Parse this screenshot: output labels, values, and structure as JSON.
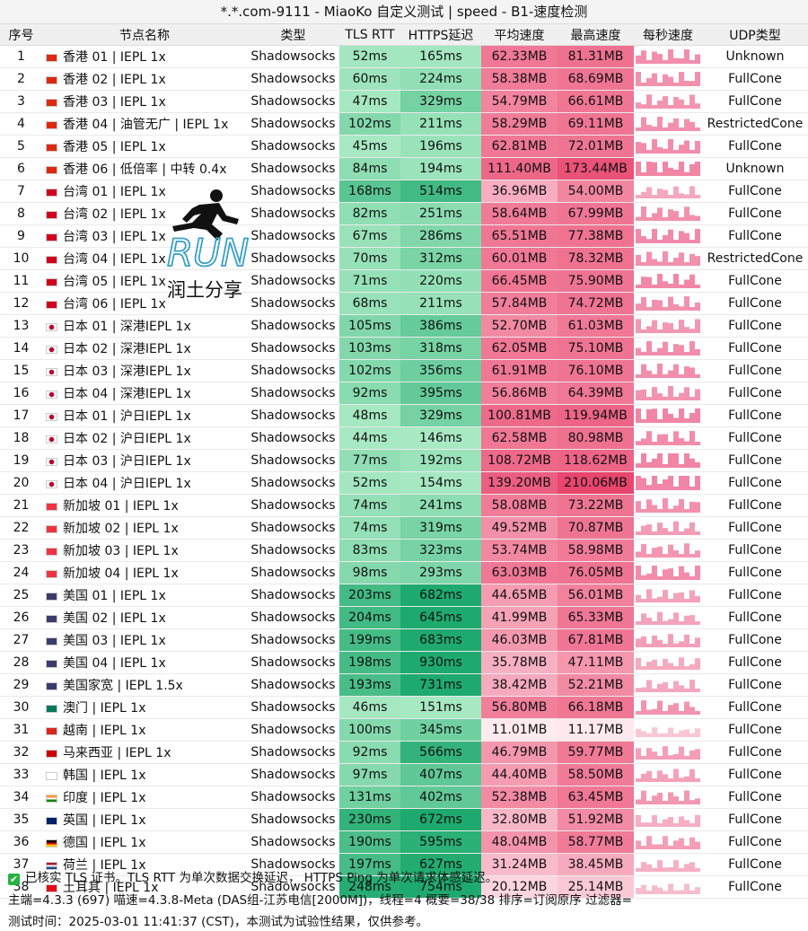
{
  "window": {
    "title": "*.*.com-9111 - MiaoKo 自定义测试 | speed - B1-速度检测"
  },
  "headers": [
    "序号",
    "节点名称",
    "类型",
    "TLS RTT",
    "HTTPS延迟",
    "平均速度",
    "最高速度",
    "每秒速度",
    "UDP类型"
  ],
  "colors": {
    "flag": {
      "hk": "#de2910",
      "tw": "#d0021b",
      "jp": "#ffffff",
      "sg": "#ef3340",
      "us": "#3c3b6e",
      "mo": "#00785e",
      "vn": "#da251d",
      "my": "#cc0001",
      "kr": "#ffffff",
      "in": "#ff9933",
      "gb": "#012169",
      "de": "#000000",
      "nl": "#ae1c28",
      "tr": "#e30a17"
    },
    "spark": "#f07ea0"
  },
  "rows": [
    {
      "idx": "1",
      "flag": "hk",
      "name": "香港 01 | IEPL 1x",
      "type": "Shadowsocks",
      "tls": "52ms",
      "https": "165ms",
      "avg": "62.33MB",
      "max": "81.31MB",
      "udp": "Unknown"
    },
    {
      "idx": "2",
      "flag": "hk",
      "name": "香港 02 | IEPL 1x",
      "type": "Shadowsocks",
      "tls": "60ms",
      "https": "224ms",
      "avg": "58.38MB",
      "max": "68.69MB",
      "udp": "FullCone"
    },
    {
      "idx": "3",
      "flag": "hk",
      "name": "香港 03 | IEPL 1x",
      "type": "Shadowsocks",
      "tls": "47ms",
      "https": "329ms",
      "avg": "54.79MB",
      "max": "66.61MB",
      "udp": "FullCone"
    },
    {
      "idx": "4",
      "flag": "hk",
      "name": "香港 04 | 油管无广 | IEPL 1x",
      "type": "Shadowsocks",
      "tls": "102ms",
      "https": "211ms",
      "avg": "58.29MB",
      "max": "69.11MB",
      "udp": "RestrictedCone"
    },
    {
      "idx": "5",
      "flag": "hk",
      "name": "香港 05 | IEPL 1x",
      "type": "Shadowsocks",
      "tls": "45ms",
      "https": "196ms",
      "avg": "62.81MB",
      "max": "72.01MB",
      "udp": "FullCone"
    },
    {
      "idx": "6",
      "flag": "hk",
      "name": "香港 06 | 低倍率 | 中转 0.4x",
      "type": "Shadowsocks",
      "tls": "84ms",
      "https": "194ms",
      "avg": "111.40MB",
      "max": "173.44MB",
      "udp": "Unknown"
    },
    {
      "idx": "7",
      "flag": "tw",
      "name": "台湾 01 | IEPL 1x",
      "type": "Shadowsocks",
      "tls": "168ms",
      "https": "514ms",
      "avg": "36.96MB",
      "max": "54.00MB",
      "udp": "FullCone"
    },
    {
      "idx": "8",
      "flag": "tw",
      "name": "台湾 02 | IEPL 1x",
      "type": "Shadowsocks",
      "tls": "82ms",
      "https": "251ms",
      "avg": "58.64MB",
      "max": "67.99MB",
      "udp": "FullCone"
    },
    {
      "idx": "9",
      "flag": "tw",
      "name": "台湾 03 | IEPL 1x",
      "type": "Shadowsocks",
      "tls": "67ms",
      "https": "286ms",
      "avg": "65.51MB",
      "max": "77.38MB",
      "udp": "FullCone"
    },
    {
      "idx": "10",
      "flag": "tw",
      "name": "台湾 04 | IEPL 1x",
      "type": "Shadowsocks",
      "tls": "70ms",
      "https": "312ms",
      "avg": "60.01MB",
      "max": "78.32MB",
      "udp": "RestrictedCone"
    },
    {
      "idx": "11",
      "flag": "tw",
      "name": "台湾 05 | IEPL 1x",
      "type": "Shadowsocks",
      "tls": "71ms",
      "https": "220ms",
      "avg": "66.45MB",
      "max": "75.90MB",
      "udp": "FullCone"
    },
    {
      "idx": "12",
      "flag": "tw",
      "name": "台湾 06 | IEPL 1x",
      "type": "Shadowsocks",
      "tls": "68ms",
      "https": "211ms",
      "avg": "57.84MB",
      "max": "74.72MB",
      "udp": "FullCone"
    },
    {
      "idx": "13",
      "flag": "jp",
      "name": "日本 01 | 深港IEPL 1x",
      "type": "Shadowsocks",
      "tls": "105ms",
      "https": "386ms",
      "avg": "52.70MB",
      "max": "61.03MB",
      "udp": "FullCone"
    },
    {
      "idx": "14",
      "flag": "jp",
      "name": "日本 02 | 深港IEPL 1x",
      "type": "Shadowsocks",
      "tls": "103ms",
      "https": "318ms",
      "avg": "62.05MB",
      "max": "75.10MB",
      "udp": "FullCone"
    },
    {
      "idx": "15",
      "flag": "jp",
      "name": "日本 03 | 深港IEPL 1x",
      "type": "Shadowsocks",
      "tls": "102ms",
      "https": "356ms",
      "avg": "61.91MB",
      "max": "76.10MB",
      "udp": "FullCone"
    },
    {
      "idx": "16",
      "flag": "jp",
      "name": "日本 04 | 深港IEPL 1x",
      "type": "Shadowsocks",
      "tls": "92ms",
      "https": "395ms",
      "avg": "56.86MB",
      "max": "64.39MB",
      "udp": "FullCone"
    },
    {
      "idx": "17",
      "flag": "jp",
      "name": "日本 01 | 沪日IEPL 1x",
      "type": "Shadowsocks",
      "tls": "48ms",
      "https": "329ms",
      "avg": "100.81MB",
      "max": "119.94MB",
      "udp": "FullCone"
    },
    {
      "idx": "18",
      "flag": "jp",
      "name": "日本 02 | 沪日IEPL 1x",
      "type": "Shadowsocks",
      "tls": "44ms",
      "https": "146ms",
      "avg": "62.58MB",
      "max": "80.98MB",
      "udp": "FullCone"
    },
    {
      "idx": "19",
      "flag": "jp",
      "name": "日本 03 | 沪日IEPL 1x",
      "type": "Shadowsocks",
      "tls": "77ms",
      "https": "192ms",
      "avg": "108.72MB",
      "max": "118.62MB",
      "udp": "FullCone"
    },
    {
      "idx": "20",
      "flag": "jp",
      "name": "日本 04 | 沪日IEPL 1x",
      "type": "Shadowsocks",
      "tls": "52ms",
      "https": "154ms",
      "avg": "139.20MB",
      "max": "210.06MB",
      "udp": "FullCone"
    },
    {
      "idx": "21",
      "flag": "sg",
      "name": "新加坡 01 | IEPL 1x",
      "type": "Shadowsocks",
      "tls": "74ms",
      "https": "241ms",
      "avg": "58.08MB",
      "max": "73.22MB",
      "udp": "FullCone"
    },
    {
      "idx": "22",
      "flag": "sg",
      "name": "新加坡 02 | IEPL 1x",
      "type": "Shadowsocks",
      "tls": "74ms",
      "https": "319ms",
      "avg": "49.52MB",
      "max": "70.87MB",
      "udp": "FullCone"
    },
    {
      "idx": "23",
      "flag": "sg",
      "name": "新加坡 03 | IEPL 1x",
      "type": "Shadowsocks",
      "tls": "83ms",
      "https": "323ms",
      "avg": "53.74MB",
      "max": "58.98MB",
      "udp": "FullCone"
    },
    {
      "idx": "24",
      "flag": "sg",
      "name": "新加坡 04 | IEPL 1x",
      "type": "Shadowsocks",
      "tls": "98ms",
      "https": "293ms",
      "avg": "63.03MB",
      "max": "76.05MB",
      "udp": "FullCone"
    },
    {
      "idx": "25",
      "flag": "us",
      "name": "美国 01 | IEPL 1x",
      "type": "Shadowsocks",
      "tls": "203ms",
      "https": "682ms",
      "avg": "44.65MB",
      "max": "56.01MB",
      "udp": "FullCone"
    },
    {
      "idx": "26",
      "flag": "us",
      "name": "美国 02 | IEPL 1x",
      "type": "Shadowsocks",
      "tls": "204ms",
      "https": "645ms",
      "avg": "41.99MB",
      "max": "65.33MB",
      "udp": "FullCone"
    },
    {
      "idx": "27",
      "flag": "us",
      "name": "美国 03 | IEPL 1x",
      "type": "Shadowsocks",
      "tls": "199ms",
      "https": "683ms",
      "avg": "46.03MB",
      "max": "67.81MB",
      "udp": "FullCone"
    },
    {
      "idx": "28",
      "flag": "us",
      "name": "美国 04 | IEPL 1x",
      "type": "Shadowsocks",
      "tls": "198ms",
      "https": "930ms",
      "avg": "35.78MB",
      "max": "47.11MB",
      "udp": "FullCone"
    },
    {
      "idx": "29",
      "flag": "us",
      "name": "美国家宽 | IEPL 1.5x",
      "type": "Shadowsocks",
      "tls": "193ms",
      "https": "731ms",
      "avg": "38.42MB",
      "max": "52.21MB",
      "udp": "FullCone"
    },
    {
      "idx": "30",
      "flag": "mo",
      "name": "澳门 | IEPL 1x",
      "type": "Shadowsocks",
      "tls": "46ms",
      "https": "151ms",
      "avg": "56.80MB",
      "max": "66.18MB",
      "udp": "FullCone"
    },
    {
      "idx": "31",
      "flag": "vn",
      "name": "越南 | IEPL 1x",
      "type": "Shadowsocks",
      "tls": "100ms",
      "https": "345ms",
      "avg": "11.01MB",
      "max": "11.17MB",
      "udp": "FullCone"
    },
    {
      "idx": "32",
      "flag": "my",
      "name": "马来西亚 | IEPL 1x",
      "type": "Shadowsocks",
      "tls": "92ms",
      "https": "566ms",
      "avg": "46.79MB",
      "max": "59.77MB",
      "udp": "FullCone"
    },
    {
      "idx": "33",
      "flag": "kr",
      "name": "韩国 | IEPL 1x",
      "type": "Shadowsocks",
      "tls": "97ms",
      "https": "407ms",
      "avg": "44.40MB",
      "max": "58.50MB",
      "udp": "FullCone"
    },
    {
      "idx": "34",
      "flag": "in",
      "name": "印度 | IEPL 1x",
      "type": "Shadowsocks",
      "tls": "131ms",
      "https": "402ms",
      "avg": "52.38MB",
      "max": "63.45MB",
      "udp": "FullCone"
    },
    {
      "idx": "35",
      "flag": "gb",
      "name": "英国 | IEPL 1x",
      "type": "Shadowsocks",
      "tls": "230ms",
      "https": "672ms",
      "avg": "32.80MB",
      "max": "51.92MB",
      "udp": "FullCone"
    },
    {
      "idx": "36",
      "flag": "de",
      "name": "德国 | IEPL 1x",
      "type": "Shadowsocks",
      "tls": "190ms",
      "https": "595ms",
      "avg": "48.04MB",
      "max": "58.77MB",
      "udp": "FullCone"
    },
    {
      "idx": "37",
      "flag": "nl",
      "name": "荷兰 | IEPL 1x",
      "type": "Shadowsocks",
      "tls": "197ms",
      "https": "627ms",
      "avg": "31.24MB",
      "max": "38.45MB",
      "udp": "FullCone"
    },
    {
      "idx": "38",
      "flag": "tr",
      "name": "土耳其 | IEPL 1x",
      "type": "Shadowsocks",
      "tls": "248ms",
      "https": "754ms",
      "avg": "20.12MB",
      "max": "25.14MB",
      "udp": "FullCone"
    }
  ],
  "footer": {
    "line1": "已核实 TLS 证书。TLS RTT 为单次数据交换延迟， HTTPS Ping 为单次请求体感延迟。",
    "line2": "主端=4.3.3 (697) 喵速=4.3.8-Meta (DAS组-江苏电信[2000M])，线程=4 概要=38/38 排序=订阅原序 过滤器=",
    "line3": "测试时间：2025-03-01 11:41:37 (CST)，本测试为试验性结果，仅供参考。"
  },
  "watermark": {
    "run": "RUN",
    "sub": "润土分享"
  }
}
